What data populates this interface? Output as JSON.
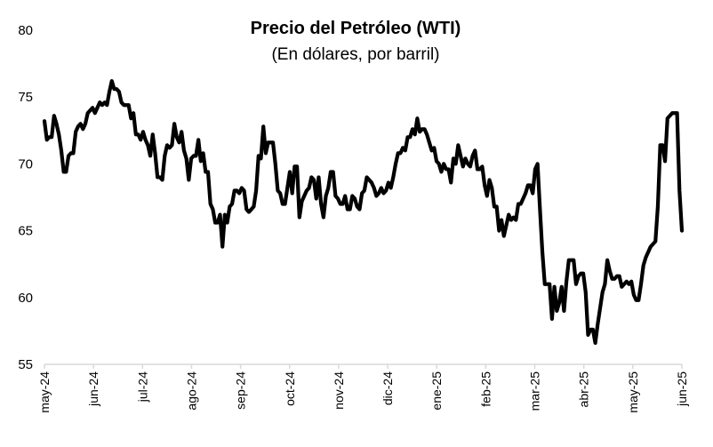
{
  "chart_data": {
    "type": "line",
    "title": "Precio del Petróleo (WTI)",
    "subtitle": "(En dólares, por barril)",
    "xlabel": "",
    "ylabel": "",
    "ylim": [
      55,
      80
    ],
    "yticks": [
      55,
      60,
      65,
      70,
      75,
      80
    ],
    "grid": false,
    "legend": "none",
    "colors": {
      "line": "#000000",
      "axis": "#d9d9d9"
    },
    "xticks": [
      "may-24",
      "jun-24",
      "jul-24",
      "ago-24",
      "sep-24",
      "oct-24",
      "nov-24",
      "dic-24",
      "ene-25",
      "feb-25",
      "mar-25",
      "abr-25",
      "may-25",
      "jun-25"
    ],
    "series": [
      {
        "values": [
          73.2,
          71.8,
          72.0,
          72.0,
          73.6,
          73.0,
          72.2,
          71.0,
          69.4,
          69.4,
          70.6,
          70.8,
          70.8,
          72.4,
          72.8,
          73.0,
          72.6,
          73.0,
          73.8,
          74.0,
          74.2,
          73.8,
          74.2,
          74.6,
          74.4,
          74.6,
          74.4,
          75.4,
          76.2,
          75.6,
          75.6,
          75.4,
          74.6,
          74.4,
          74.4,
          74.4,
          73.4,
          73.8,
          72.2,
          72.2,
          71.8,
          72.4,
          71.8,
          71.4,
          70.6,
          72.2,
          70.8,
          69.0,
          69.0,
          68.8,
          70.6,
          71.4,
          71.2,
          71.4,
          73.0,
          72.0,
          71.6,
          72.4,
          71.0,
          70.4,
          68.8,
          70.4,
          70.6,
          70.6,
          71.8,
          70.2,
          70.8,
          69.4,
          69.4,
          67.0,
          66.6,
          65.6,
          65.6,
          66.2,
          63.8,
          66.2,
          65.6,
          66.8,
          67.0,
          68.0,
          68.0,
          67.8,
          68.2,
          68.0,
          66.6,
          66.4,
          66.6,
          66.8,
          68.0,
          70.6,
          70.4,
          72.8,
          70.8,
          71.6,
          71.6,
          71.6,
          70.0,
          68.0,
          67.8,
          67.0,
          67.0,
          68.2,
          69.4,
          67.8,
          69.8,
          69.8,
          66.0,
          67.2,
          67.6,
          68.0,
          68.2,
          69.0,
          68.8,
          67.4,
          69.0,
          67.0,
          66.0,
          67.6,
          68.2,
          69.4,
          69.4,
          67.6,
          67.4,
          67.0,
          67.0,
          67.6,
          66.6,
          66.6,
          67.6,
          67.4,
          66.8,
          66.6,
          67.8,
          68.0,
          69.0,
          68.8,
          68.6,
          68.2,
          67.6,
          67.8,
          68.2,
          67.8,
          68.0,
          68.6,
          68.2,
          69.0,
          70.0,
          70.8,
          70.8,
          71.2,
          71.0,
          72.0,
          72.0,
          72.6,
          72.2,
          73.4,
          72.4,
          72.6,
          72.6,
          72.2,
          71.6,
          71.0,
          71.2,
          70.2,
          70.0,
          69.4,
          70.0,
          69.6,
          69.6,
          68.6,
          70.4,
          70.0,
          71.4,
          70.6,
          69.8,
          70.4,
          70.0,
          69.8,
          70.6,
          71.0,
          69.6,
          69.6,
          69.8,
          68.4,
          67.6,
          68.8,
          68.2,
          66.8,
          66.8,
          65.0,
          65.8,
          64.6,
          65.4,
          66.2,
          65.8,
          66.0,
          65.8,
          67.0,
          67.0,
          67.4,
          67.8,
          68.4,
          68.4,
          67.8,
          69.6,
          70.0,
          66.6,
          63.4,
          61.0,
          61.0,
          61.0,
          58.4,
          60.8,
          59.0,
          59.6,
          60.8,
          59.0,
          61.2,
          62.8,
          62.8,
          62.8,
          61.0,
          61.6,
          61.8,
          61.8,
          60.4,
          57.2,
          57.6,
          57.6,
          56.6,
          58.0,
          59.2,
          60.4,
          61.0,
          62.8,
          62.0,
          61.4,
          61.4,
          61.6,
          61.6,
          60.8,
          61.0,
          61.2,
          61.0,
          61.2,
          60.2,
          59.8,
          59.8,
          61.0,
          62.4,
          63.0,
          63.4,
          63.8,
          64.0,
          64.2,
          66.8,
          71.4,
          71.4,
          70.2,
          73.4,
          73.6,
          73.8,
          73.8,
          73.8,
          68.0,
          65.0
        ]
      }
    ]
  }
}
